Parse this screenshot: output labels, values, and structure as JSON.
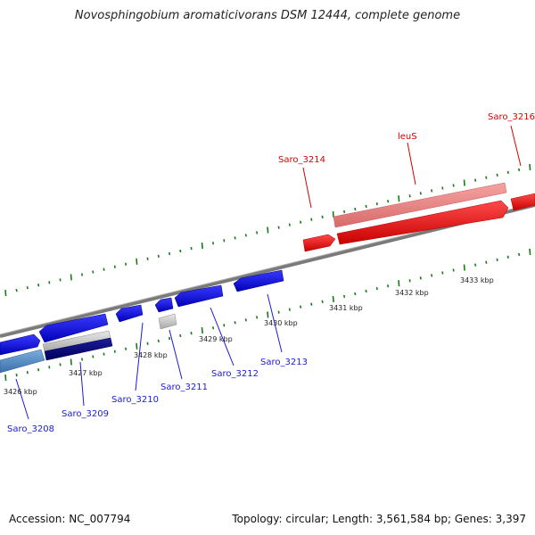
{
  "title": "Novosphingobium aromaticivorans DSM 12444, complete genome",
  "footer": {
    "accession": "Accession: NC_007794",
    "summary": "Topology: circular; Length: 3,561,584 bp; Genes: 3,397"
  },
  "colors": {
    "cds_forward": "#ff0000",
    "cds_forward_light": "#f08080",
    "cds_reverse": "#0000ee",
    "cds_reverse_dark": "#000080",
    "cds_reverse_steel": "#4f88c6",
    "pseudo": "#c8c8c8",
    "backbone": "#808080",
    "ticks": "#1a7a1a"
  },
  "scale_labels": [
    "3426 kbp",
    "3427 kbp",
    "3428 kbp",
    "3429 kbp",
    "3430 kbp",
    "3431 kbp",
    "3432 kbp",
    "3433 kbp"
  ],
  "genes": [
    {
      "label": "Saro_3208",
      "strand": "reverse"
    },
    {
      "label": "Saro_3209",
      "strand": "reverse"
    },
    {
      "label": "Saro_3210",
      "strand": "reverse"
    },
    {
      "label": "Saro_3211",
      "strand": "reverse"
    },
    {
      "label": "Saro_3212",
      "strand": "reverse"
    },
    {
      "label": "Saro_3213",
      "strand": "reverse"
    },
    {
      "label": "Saro_3214",
      "strand": "forward"
    },
    {
      "label": "leuS",
      "strand": "forward"
    },
    {
      "label": "Saro_3216",
      "strand": "forward"
    }
  ]
}
